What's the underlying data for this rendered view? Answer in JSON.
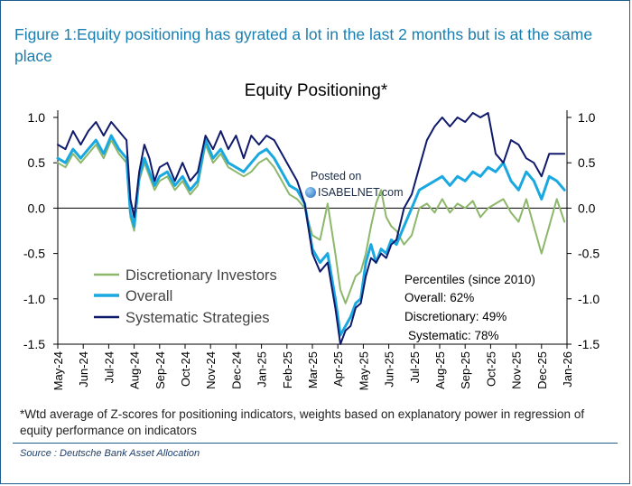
{
  "figure_title": "Figure 1:Equity positioning has gyrated a lot in the last 2 months but is at the same place",
  "watermark": {
    "posted_on": "Posted on",
    "site": "ISABELNET.com"
  },
  "footnote": "*Wtd average of Z-scores for positioning indicators, weights based on explanatory power in regression of equity performance on indicators",
  "source": "Source : Deutsche Bank Asset Allocation",
  "chart_data": {
    "type": "line",
    "title": "Equity Positioning*",
    "xlabel": "",
    "ylabel": "",
    "ylim": [
      -1.5,
      1.0
    ],
    "yticks": [
      1.0,
      0.5,
      0.0,
      -0.5,
      -1.0,
      -1.5
    ],
    "ytick_labels": [
      "1.0",
      "0.5",
      "0.0",
      "-0.5",
      "-1.0",
      "-1.5"
    ],
    "xlim": [
      0,
      20
    ],
    "x_tick_labels": [
      "May-24",
      "Jun-24",
      "Jul-24",
      "Aug-24",
      "Sep-24",
      "Oct-24",
      "Nov-24",
      "Dec-24",
      "Jan-25",
      "Feb-25",
      "Mar-25",
      "Apr-25",
      "May-25",
      "Jun-25",
      "Jul-25",
      "Aug-25",
      "Sep-25",
      "Oct-25",
      "Nov-25",
      "Dec-25",
      "Jan-26"
    ],
    "grid": false,
    "legend_position": "bottom-left",
    "series": [
      {
        "name": "Discretionary Investors",
        "color": "#8db76a",
        "x": [
          0,
          0.3,
          0.6,
          0.9,
          1.2,
          1.5,
          1.8,
          2.1,
          2.4,
          2.7,
          2.85,
          3.0,
          3.2,
          3.4,
          3.6,
          3.8,
          4.0,
          4.3,
          4.6,
          4.9,
          5.2,
          5.5,
          5.8,
          6.1,
          6.4,
          6.7,
          7.0,
          7.3,
          7.6,
          7.9,
          8.2,
          8.5,
          8.8,
          9.1,
          9.4,
          9.7,
          10.0,
          10.3,
          10.6,
          10.9,
          11.1,
          11.3,
          11.5,
          11.7,
          11.9,
          12.1,
          12.3,
          12.5,
          12.7,
          12.9,
          13.1,
          13.3,
          13.6,
          13.9,
          14.2,
          14.5,
          14.8,
          15.1,
          15.4,
          15.7,
          16.0,
          16.3,
          16.6,
          16.9,
          17.2,
          17.5,
          17.8,
          18.1,
          18.4,
          18.7,
          19.0,
          19.3,
          19.6,
          19.9
        ],
        "values": [
          0.5,
          0.45,
          0.6,
          0.5,
          0.6,
          0.7,
          0.55,
          0.75,
          0.6,
          0.5,
          -0.1,
          -0.25,
          0.3,
          0.5,
          0.35,
          0.2,
          0.3,
          0.35,
          0.2,
          0.3,
          0.15,
          0.25,
          0.7,
          0.5,
          0.6,
          0.45,
          0.4,
          0.35,
          0.4,
          0.5,
          0.55,
          0.45,
          0.3,
          0.15,
          0.1,
          0.0,
          -0.3,
          -0.35,
          0.05,
          -0.5,
          -0.9,
          -1.05,
          -0.9,
          -0.75,
          -0.7,
          -0.5,
          -0.2,
          0.05,
          0.2,
          -0.1,
          -0.2,
          -0.25,
          -0.4,
          -0.3,
          0.0,
          0.05,
          -0.05,
          0.1,
          -0.05,
          0.05,
          0.0,
          0.08,
          -0.1,
          0.0,
          0.05,
          0.1,
          -0.05,
          -0.15,
          0.1,
          -0.2,
          -0.5,
          -0.2,
          0.1,
          -0.15
        ]
      },
      {
        "name": "Overall",
        "color": "#19a8e0",
        "x": [
          0,
          0.3,
          0.6,
          0.9,
          1.2,
          1.5,
          1.8,
          2.1,
          2.4,
          2.7,
          2.85,
          3.0,
          3.2,
          3.4,
          3.6,
          3.8,
          4.0,
          4.3,
          4.6,
          4.9,
          5.2,
          5.5,
          5.8,
          6.1,
          6.4,
          6.7,
          7.0,
          7.3,
          7.6,
          7.9,
          8.2,
          8.5,
          8.8,
          9.1,
          9.4,
          9.7,
          10.0,
          10.3,
          10.6,
          10.9,
          11.1,
          11.3,
          11.5,
          11.7,
          11.9,
          12.1,
          12.3,
          12.5,
          12.7,
          12.9,
          13.1,
          13.3,
          13.6,
          13.9,
          14.2,
          14.5,
          14.8,
          15.1,
          15.4,
          15.7,
          16.0,
          16.3,
          16.6,
          16.9,
          17.2,
          17.5,
          17.8,
          18.1,
          18.4,
          18.7,
          19.0,
          19.3,
          19.6,
          19.9
        ],
        "values": [
          0.55,
          0.5,
          0.65,
          0.55,
          0.65,
          0.75,
          0.6,
          0.8,
          0.65,
          0.55,
          -0.05,
          -0.2,
          0.35,
          0.55,
          0.4,
          0.25,
          0.35,
          0.4,
          0.25,
          0.35,
          0.2,
          0.3,
          0.75,
          0.55,
          0.65,
          0.5,
          0.45,
          0.4,
          0.5,
          0.6,
          0.65,
          0.55,
          0.4,
          0.25,
          0.2,
          0.05,
          -0.45,
          -0.6,
          -0.5,
          -1.0,
          -1.4,
          -1.3,
          -1.2,
          -1.05,
          -1.0,
          -0.6,
          -0.4,
          -0.6,
          -0.45,
          -0.5,
          -0.35,
          -0.4,
          -0.2,
          0.0,
          0.2,
          0.25,
          0.3,
          0.35,
          0.25,
          0.35,
          0.3,
          0.4,
          0.35,
          0.45,
          0.4,
          0.5,
          0.3,
          0.2,
          0.4,
          0.3,
          0.1,
          0.35,
          0.3,
          0.2
        ]
      },
      {
        "name": "Systematic Strategies",
        "color": "#101a6b",
        "x": [
          0,
          0.3,
          0.6,
          0.9,
          1.2,
          1.5,
          1.8,
          2.1,
          2.4,
          2.7,
          2.85,
          3.0,
          3.2,
          3.4,
          3.6,
          3.8,
          4.0,
          4.3,
          4.6,
          4.9,
          5.2,
          5.5,
          5.8,
          6.1,
          6.4,
          6.7,
          7.0,
          7.3,
          7.6,
          7.9,
          8.2,
          8.5,
          8.8,
          9.1,
          9.4,
          9.7,
          10.0,
          10.3,
          10.6,
          10.9,
          11.1,
          11.3,
          11.5,
          11.7,
          11.9,
          12.1,
          12.3,
          12.5,
          12.7,
          12.9,
          13.1,
          13.3,
          13.6,
          13.9,
          14.2,
          14.5,
          14.8,
          15.1,
          15.4,
          15.7,
          16.0,
          16.3,
          16.6,
          16.9,
          17.2,
          17.5,
          17.8,
          18.1,
          18.4,
          18.7,
          19.0,
          19.3,
          19.6,
          19.9
        ],
        "values": [
          0.7,
          0.65,
          0.85,
          0.7,
          0.85,
          0.95,
          0.8,
          0.95,
          0.85,
          0.75,
          0.1,
          -0.1,
          0.4,
          0.7,
          0.55,
          0.3,
          0.45,
          0.5,
          0.3,
          0.5,
          0.3,
          0.4,
          0.8,
          0.65,
          0.85,
          0.65,
          0.8,
          0.55,
          0.8,
          0.7,
          0.8,
          0.75,
          0.6,
          0.45,
          0.3,
          0.05,
          -0.5,
          -0.7,
          -0.6,
          -1.1,
          -1.5,
          -1.35,
          -1.3,
          -1.1,
          -1.05,
          -0.75,
          -0.55,
          -0.6,
          -0.5,
          -0.55,
          -0.4,
          -0.35,
          0.0,
          0.15,
          0.45,
          0.75,
          0.9,
          1.0,
          0.9,
          1.0,
          0.95,
          1.05,
          1.0,
          1.05,
          0.6,
          0.5,
          0.75,
          0.7,
          0.55,
          0.5,
          0.35,
          0.6,
          0.6,
          0.6
        ]
      }
    ],
    "annotations": {
      "header": "Percentiles (since 2010)",
      "lines": [
        "Overall: 62%",
        "Discretionary: 49%",
        "Systematic: 78%"
      ]
    }
  }
}
